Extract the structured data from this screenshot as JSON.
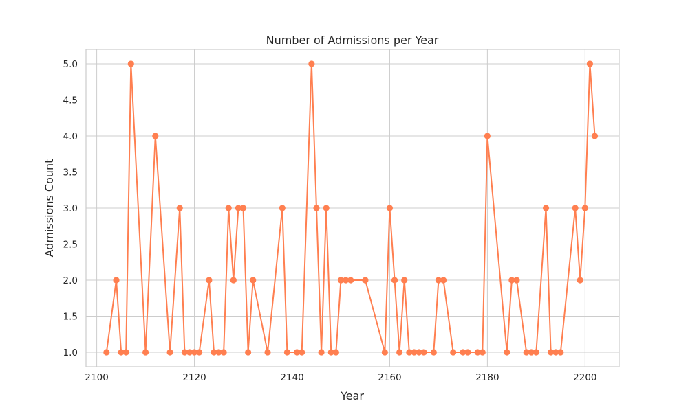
{
  "chart_data": {
    "type": "line",
    "title": "Number of Admissions per Year",
    "xlabel": "Year",
    "ylabel": "Admissions Count",
    "xlim": [
      2097.8,
      2207.0
    ],
    "ylim": [
      0.8,
      5.2
    ],
    "xticks": [
      2100,
      2120,
      2140,
      2160,
      2180,
      2200
    ],
    "yticks": [
      1.0,
      1.5,
      2.0,
      2.5,
      3.0,
      3.5,
      4.0,
      4.5,
      5.0
    ],
    "grid": true,
    "color": "#ff7f50",
    "series": [
      {
        "x": [
          2102,
          2104,
          2105,
          2106,
          2107,
          2110,
          2112,
          2115,
          2117,
          2118,
          2119,
          2120,
          2121,
          2123,
          2124,
          2125,
          2126,
          2127,
          2128,
          2129,
          2130,
          2131,
          2132,
          2135,
          2138,
          2139,
          2141,
          2142,
          2144,
          2145,
          2146,
          2147,
          2148,
          2149,
          2150,
          2151,
          2152,
          2155,
          2159,
          2160,
          2161,
          2162,
          2163,
          2164,
          2165,
          2166,
          2167,
          2169,
          2170,
          2171,
          2173,
          2175,
          2176,
          2178,
          2179,
          2180,
          2184,
          2185,
          2186,
          2188,
          2189,
          2190,
          2192,
          2193,
          2194,
          2195,
          2198,
          2199,
          2200,
          2201,
          2202
        ],
        "y": [
          1,
          2,
          1,
          1,
          5,
          1,
          4,
          1,
          3,
          1,
          1,
          1,
          1,
          2,
          1,
          1,
          1,
          3,
          2,
          3,
          3,
          1,
          2,
          1,
          3,
          1,
          1,
          1,
          5,
          3,
          1,
          3,
          1,
          1,
          2,
          2,
          2,
          2,
          1,
          3,
          2,
          1,
          2,
          1,
          1,
          1,
          1,
          1,
          2,
          2,
          1,
          1,
          1,
          1,
          1,
          4,
          1,
          2,
          2,
          1,
          1,
          1,
          3,
          1,
          1,
          1,
          3,
          2,
          3,
          5,
          4
        ]
      }
    ]
  }
}
